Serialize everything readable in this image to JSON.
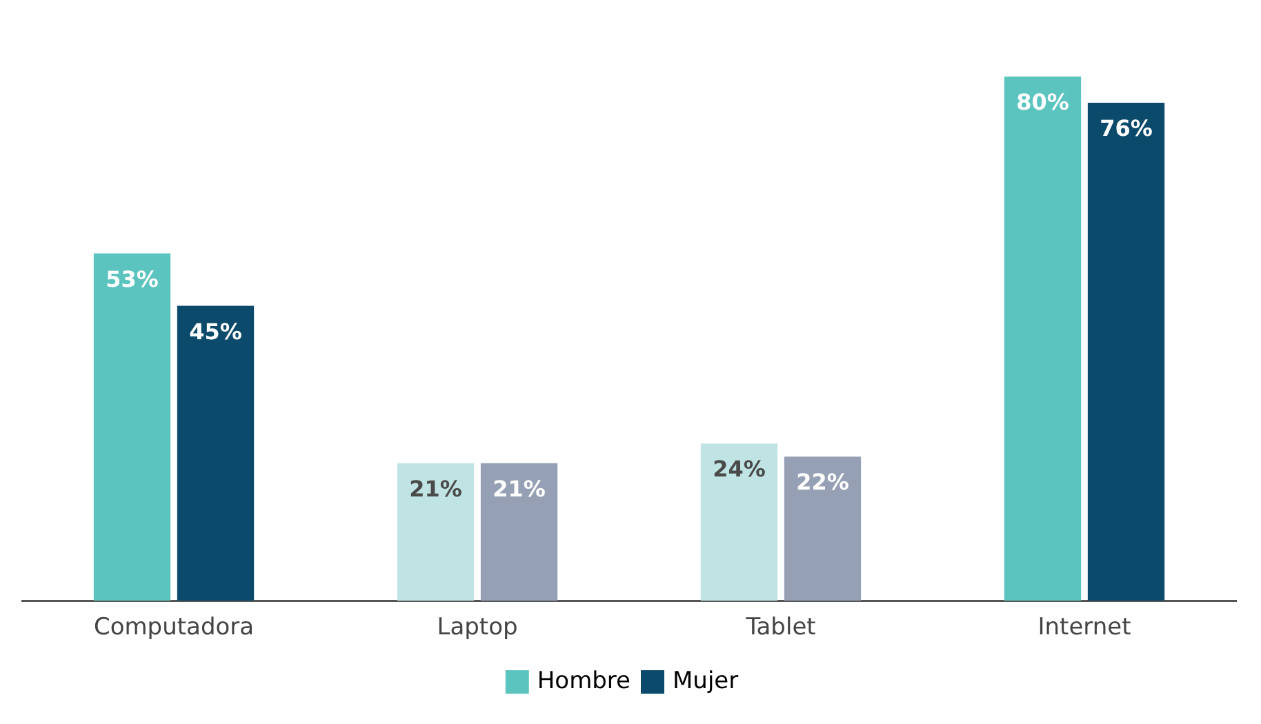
{
  "chart_data": {
    "type": "bar",
    "categories": [
      "Computadora",
      "Laptop",
      "Tablet",
      "Internet"
    ],
    "legend": "bottom",
    "grid": false,
    "series": [
      {
        "name": "Hombre",
        "color": "#5bc4bf",
        "colors": [
          "#5bc4bf",
          "#c0e4e4",
          "#c0e4e4",
          "#5bc4bf"
        ],
        "values": [
          53,
          21,
          24,
          80
        ],
        "value_labels": [
          "53%",
          "21%",
          "24%",
          "80%"
        ]
      },
      {
        "name": "Mujer",
        "color": "#0b4a6b",
        "colors": [
          "#0b4a6b",
          "#96a0b5",
          "#96a0b5",
          "#0b4a6b"
        ],
        "values": [
          45,
          21,
          22,
          76
        ],
        "value_labels": [
          "45%",
          "21%",
          "22%",
          "76%"
        ]
      }
    ]
  }
}
